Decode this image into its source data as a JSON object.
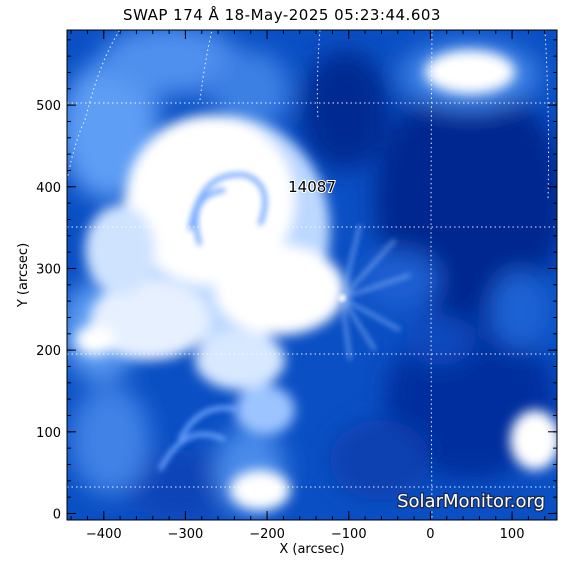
{
  "title": "SWAP 174 Å 18-May-2025 05:23:44.603",
  "axes": {
    "xlabel": "X (arcsec)",
    "ylabel": "Y (arcsec)",
    "xlim": [
      -445,
      155
    ],
    "ylim": [
      -8,
      592
    ],
    "x_ticks": [
      -400,
      -300,
      -200,
      -100,
      0,
      100
    ],
    "y_ticks": [
      0,
      100,
      200,
      300,
      400,
      500
    ],
    "x_tick_labels": [
      "−400",
      "−300",
      "−200",
      "−100",
      "0",
      "100"
    ],
    "y_tick_labels": [
      "0",
      "100",
      "200",
      "300",
      "400",
      "500"
    ]
  },
  "active_region": {
    "label": "14087",
    "x": -145,
    "y": 400
  },
  "watermark": "SolarMonitor.org",
  "colors": {
    "dark": "#00207a",
    "mid": "#0a55c8",
    "light": "#6aa8ff",
    "bright": "#ffffff",
    "grid": "#ffffff"
  }
}
